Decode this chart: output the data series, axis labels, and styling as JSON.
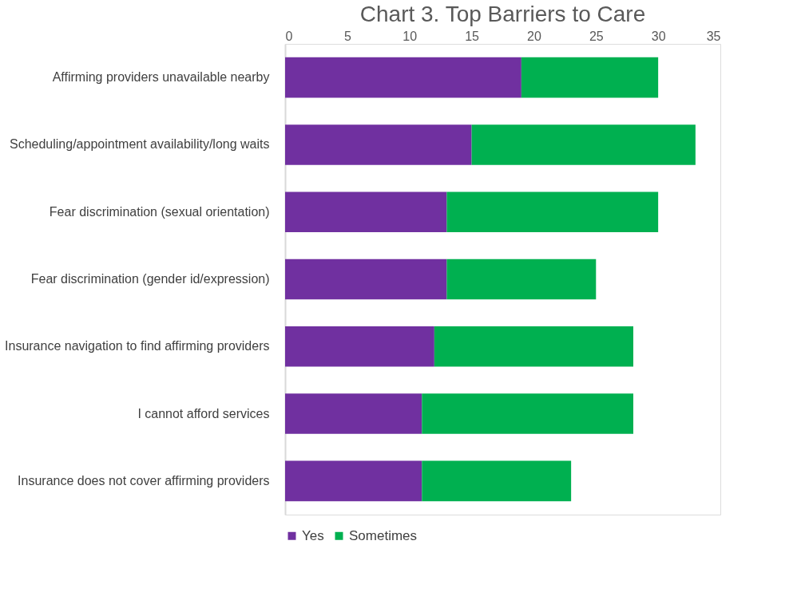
{
  "chart_data": {
    "type": "bar",
    "orientation": "horizontal",
    "stacked": true,
    "title": "Chart 3. Top Barriers to Care",
    "categories": [
      "Affirming providers unavailable nearby",
      "Scheduling/appointment availability/long waits",
      "Fear discrimination (sexual orientation)",
      "Fear discrimination (gender id/expression)",
      "Insurance navigation to find affirming providers",
      "I cannot afford services",
      "Insurance does not cover affirming providers"
    ],
    "series": [
      {
        "name": "Yes",
        "color": "#7030a0",
        "values": [
          19,
          15,
          13,
          13,
          12,
          11,
          11
        ]
      },
      {
        "name": "Sometimes",
        "color": "#00b050",
        "values": [
          11,
          18,
          17,
          12,
          16,
          17,
          12
        ]
      }
    ],
    "xlim": [
      0,
      35
    ],
    "xticks": [
      0,
      5,
      10,
      15,
      20,
      25,
      30,
      35
    ],
    "grid": false,
    "legend": "bottom"
  }
}
